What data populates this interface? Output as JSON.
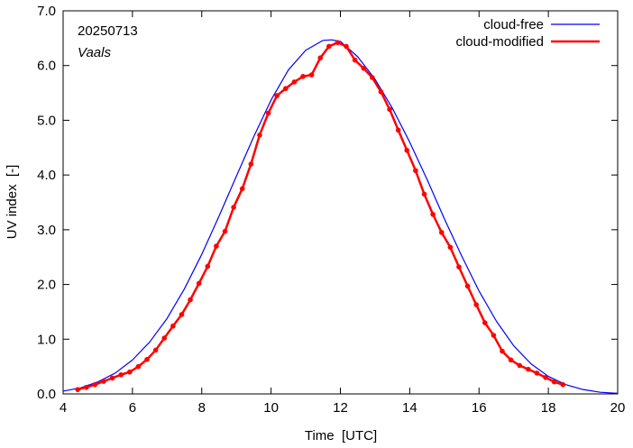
{
  "chart_data": {
    "type": "line",
    "annotations": {
      "date": "20250713",
      "location": "Vaals"
    },
    "xlabel": "Time  [UTC]",
    "ylabel": "UV index  [-]",
    "xlim": [
      4,
      20
    ],
    "ylim": [
      0,
      7
    ],
    "xticks": [
      4,
      6,
      8,
      10,
      12,
      14,
      16,
      18,
      20
    ],
    "yticks": [
      "0.0",
      "1.0",
      "2.0",
      "3.0",
      "4.0",
      "5.0",
      "6.0",
      "7.0"
    ],
    "legend_position": "top-right",
    "grid": false,
    "series": [
      {
        "name": "cloud-free",
        "color": "#0000ff",
        "markers": false,
        "x": [
          4.0,
          4.5,
          5.0,
          5.5,
          6.0,
          6.5,
          7.0,
          7.5,
          8.0,
          8.5,
          9.0,
          9.5,
          10.0,
          10.5,
          11.0,
          11.5,
          11.75,
          12.0,
          12.5,
          13.0,
          13.5,
          14.0,
          14.5,
          15.0,
          15.5,
          16.0,
          16.5,
          17.0,
          17.5,
          18.0,
          18.5,
          19.0,
          19.5,
          20.0
        ],
        "y": [
          0.05,
          0.11,
          0.22,
          0.38,
          0.62,
          0.95,
          1.38,
          1.92,
          2.55,
          3.25,
          3.98,
          4.7,
          5.37,
          5.92,
          6.28,
          6.46,
          6.47,
          6.44,
          6.16,
          5.75,
          5.22,
          4.6,
          3.92,
          3.2,
          2.52,
          1.88,
          1.33,
          0.88,
          0.55,
          0.32,
          0.17,
          0.08,
          0.03,
          0.01
        ]
      },
      {
        "name": "cloud-modified",
        "color": "#ff0000",
        "markers": true,
        "x": [
          4.42,
          4.67,
          4.92,
          5.17,
          5.42,
          5.67,
          5.92,
          6.17,
          6.42,
          6.67,
          6.92,
          7.17,
          7.42,
          7.67,
          7.92,
          8.17,
          8.42,
          8.67,
          8.92,
          9.17,
          9.42,
          9.67,
          9.92,
          10.17,
          10.42,
          10.67,
          10.92,
          11.17,
          11.42,
          11.67,
          11.92,
          12.17,
          12.42,
          12.67,
          12.92,
          13.17,
          13.42,
          13.67,
          13.92,
          14.17,
          14.42,
          14.67,
          14.92,
          15.17,
          15.42,
          15.67,
          15.92,
          16.17,
          16.42,
          16.67,
          16.92,
          17.17,
          17.42,
          17.67,
          17.92,
          18.17,
          18.42
        ],
        "y": [
          0.08,
          0.12,
          0.17,
          0.23,
          0.29,
          0.35,
          0.4,
          0.5,
          0.63,
          0.8,
          1.02,
          1.24,
          1.45,
          1.72,
          2.02,
          2.33,
          2.7,
          2.97,
          3.41,
          3.75,
          4.2,
          4.73,
          5.13,
          5.45,
          5.58,
          5.7,
          5.8,
          5.83,
          6.14,
          6.35,
          6.42,
          6.35,
          6.1,
          5.95,
          5.78,
          5.52,
          5.2,
          4.82,
          4.45,
          4.08,
          3.65,
          3.28,
          2.95,
          2.68,
          2.32,
          1.97,
          1.63,
          1.3,
          1.07,
          0.78,
          0.62,
          0.52,
          0.45,
          0.38,
          0.3,
          0.22,
          0.17
        ]
      }
    ]
  }
}
